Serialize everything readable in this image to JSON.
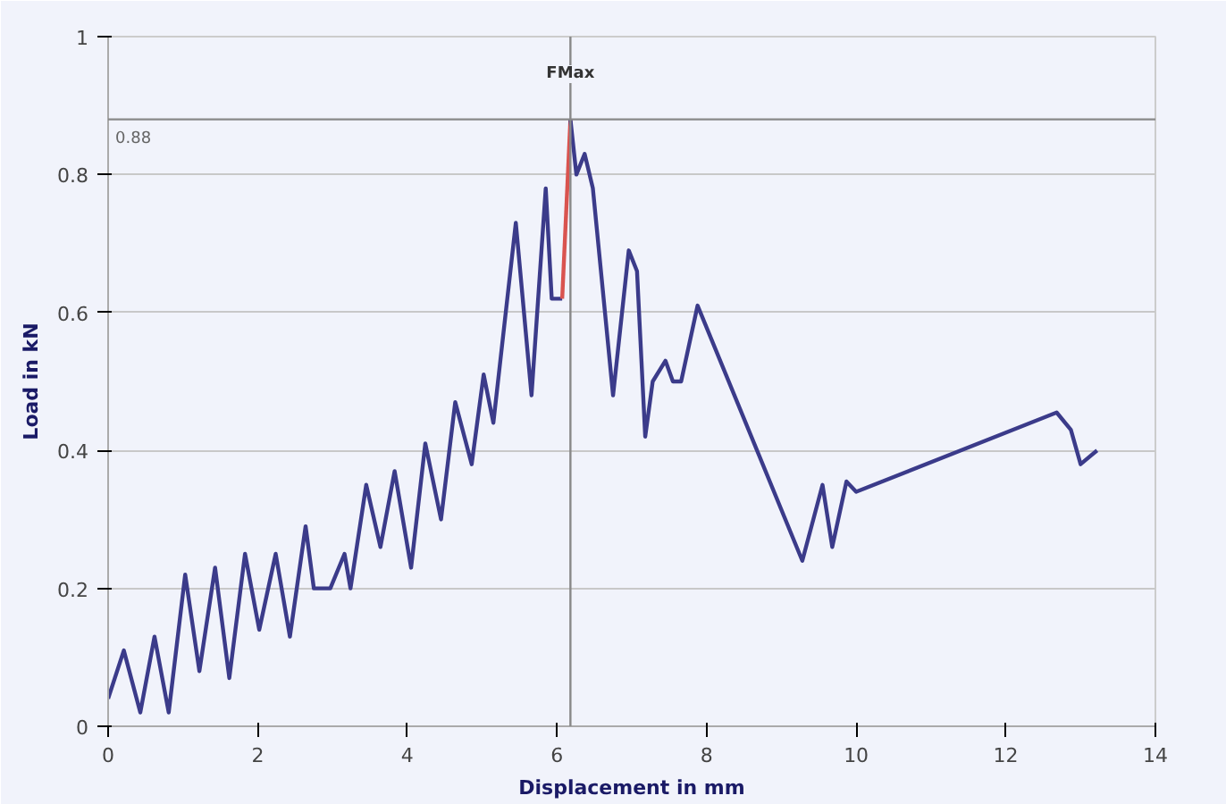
{
  "chart_data": {
    "type": "line",
    "xlabel": "Displacement in mm",
    "ylabel": "Load in kN",
    "xlim": [
      0,
      14
    ],
    "ylim": [
      0,
      1
    ],
    "xticks": [
      0,
      2,
      4,
      6,
      8,
      10,
      12,
      14
    ],
    "yticks": [
      0,
      0.2,
      0.4,
      0.6,
      0.8,
      1
    ],
    "grid": "y",
    "marker": "none",
    "line_style": "solid",
    "series": [
      {
        "color": "#3b3b8a",
        "x": [
          0,
          0.21,
          0.43,
          0.62,
          0.81,
          1.03,
          1.22,
          1.43,
          1.62,
          1.83,
          2.02,
          2.24,
          2.43,
          2.64,
          2.75,
          2.97,
          3.16,
          3.24,
          3.45,
          3.64,
          3.83,
          4.05,
          4.24,
          4.45,
          4.64,
          4.86,
          5.02,
          5.15,
          5.45,
          5.66,
          5.85,
          5.93,
          6.07
        ],
        "values": [
          0.04,
          0.11,
          0.02,
          0.13,
          0.02,
          0.22,
          0.08,
          0.23,
          0.07,
          0.25,
          0.14,
          0.25,
          0.13,
          0.29,
          0.2,
          0.2,
          0.25,
          0.2,
          0.35,
          0.26,
          0.37,
          0.23,
          0.41,
          0.3,
          0.47,
          0.38,
          0.51,
          0.44,
          0.73,
          0.48,
          0.78,
          0.62,
          0.62
        ]
      },
      {
        "color": "#d9534f",
        "x": [
          6.07,
          6.18
        ],
        "values": [
          0.62,
          0.88
        ]
      },
      {
        "color": "#3b3b8a",
        "x": [
          6.18,
          6.26,
          6.37,
          6.48,
          6.75,
          6.96,
          7.07,
          7.18,
          7.28,
          7.45,
          7.55,
          7.66,
          7.88,
          9.28,
          9.55,
          9.68,
          9.87,
          10.0,
          12.68,
          12.87,
          13.0,
          13.22
        ],
        "values": [
          0.88,
          0.8,
          0.83,
          0.78,
          0.48,
          0.69,
          0.66,
          0.42,
          0.5,
          0.53,
          0.5,
          0.5,
          0.61,
          0.24,
          0.35,
          0.26,
          0.355,
          0.34,
          0.455,
          0.43,
          0.38,
          0.4
        ]
      }
    ],
    "ref_lines": [
      {
        "axis": "y",
        "value": 0.88,
        "label": "0.88",
        "color": "#888888"
      },
      {
        "axis": "x",
        "value": 6.18,
        "label": "FMax",
        "color": "#888888"
      }
    ]
  }
}
